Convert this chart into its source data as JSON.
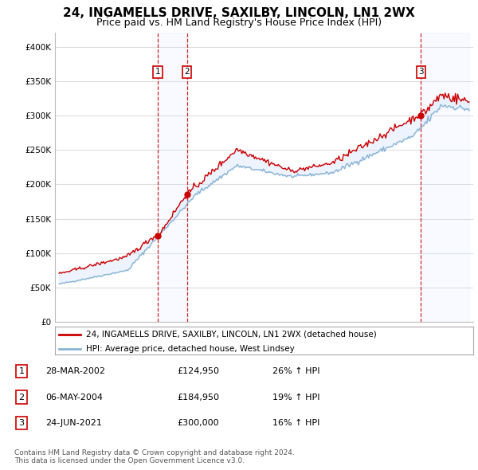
{
  "title": "24, INGAMELLS DRIVE, SAXILBY, LINCOLN, LN1 2WX",
  "subtitle": "Price paid vs. HM Land Registry's House Price Index (HPI)",
  "ylim": [
    0,
    420000
  ],
  "yticks": [
    0,
    50000,
    100000,
    150000,
    200000,
    250000,
    300000,
    350000,
    400000
  ],
  "ytick_labels": [
    "£0",
    "£50K",
    "£100K",
    "£150K",
    "£200K",
    "£250K",
    "£300K",
    "£350K",
    "£400K"
  ],
  "red_line_color": "#cc0000",
  "blue_line_color": "#8ab4d4",
  "sale_color": "#cc0000",
  "vline_color": "#cc0000",
  "shade_color": "#cce0ff",
  "transactions": [
    {
      "num": 1,
      "date": "28-MAR-2002",
      "price": 124950,
      "pct": "26%",
      "direction": "↑",
      "x": 2002.24
    },
    {
      "num": 2,
      "date": "06-MAY-2004",
      "price": 184950,
      "pct": "19%",
      "direction": "↑",
      "x": 2004.35
    },
    {
      "num": 3,
      "date": "24-JUN-2021",
      "price": 300000,
      "pct": "16%",
      "direction": "↑",
      "x": 2021.48
    }
  ],
  "legend_red": "24, INGAMELLS DRIVE, SAXILBY, LINCOLN, LN1 2WX (detached house)",
  "legend_blue": "HPI: Average price, detached house, West Lindsey",
  "footnote": "Contains HM Land Registry data © Crown copyright and database right 2024.\nThis data is licensed under the Open Government Licence v3.0.",
  "background_color": "#ffffff",
  "plot_bg_color": "#ffffff",
  "grid_color": "#dddddd",
  "title_fontsize": 11,
  "subtitle_fontsize": 9,
  "tick_fontsize": 7.5
}
